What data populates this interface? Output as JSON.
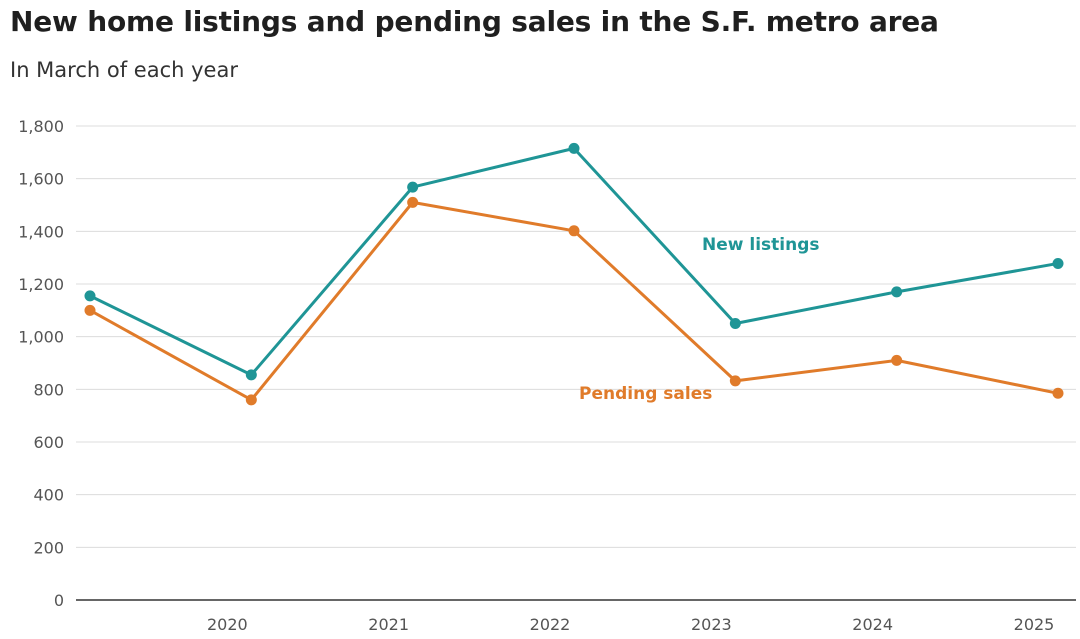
{
  "chart_data": {
    "type": "line",
    "title": "New home listings and pending sales in the S.F. metro area",
    "subtitle": "In March of each year",
    "xlabel": "",
    "ylabel": "",
    "ylim": [
      0,
      1800
    ],
    "yticks": [
      0,
      200,
      400,
      600,
      800,
      1000,
      1200,
      1400,
      1600,
      1800
    ],
    "ytick_labels": [
      "0",
      "200",
      "400",
      "600",
      "800",
      "1,000",
      "1,200",
      "1,400",
      "1,600",
      "1,800"
    ],
    "x": [
      2019,
      2020,
      2021,
      2022,
      2023,
      2024,
      2025
    ],
    "xtick_labels": [
      "2020",
      "2021",
      "2022",
      "2023",
      "2024",
      "2025"
    ],
    "grid": true,
    "series": [
      {
        "name": "New listings",
        "color": "#1f9596",
        "values": [
          1155,
          855,
          1568,
          1715,
          1050,
          1170,
          1278
        ]
      },
      {
        "name": "Pending sales",
        "color": "#e07b2a",
        "values": [
          1100,
          760,
          1510,
          1402,
          832,
          910,
          785
        ]
      }
    ]
  }
}
